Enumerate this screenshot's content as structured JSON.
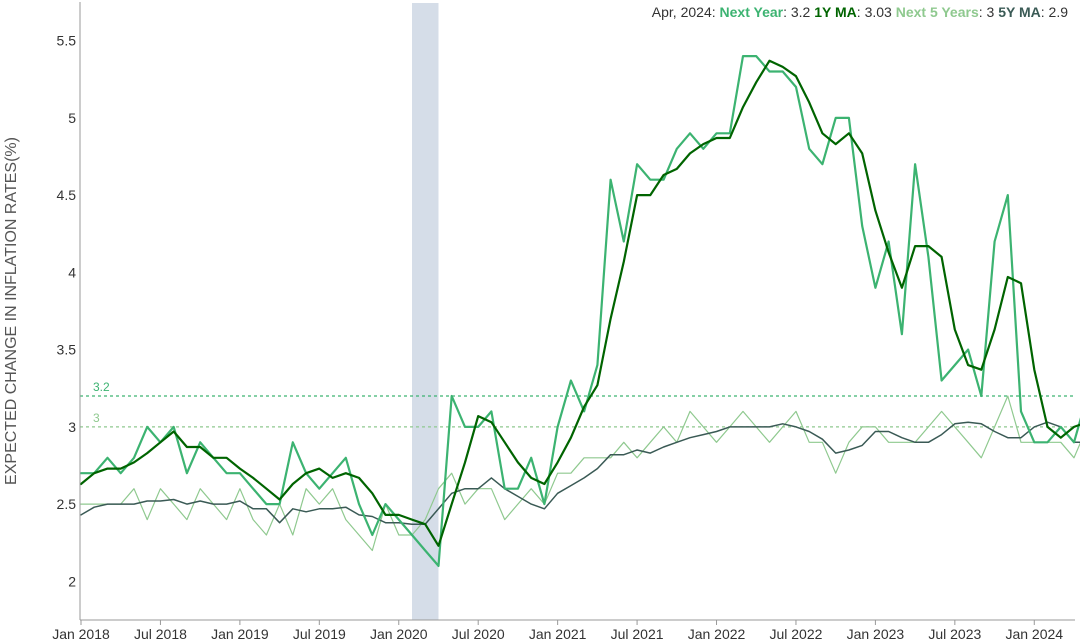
{
  "legend": {
    "date": "Apr, 2024:",
    "series": [
      {
        "label": "Next Year",
        "value": "3.2",
        "color": "#3cb371"
      },
      {
        "label": "1Y MA",
        "value": "3.03",
        "color": "#006400"
      },
      {
        "label": "Next 5 Years",
        "value": "3",
        "color": "#8fc98f"
      },
      {
        "label": "5Y MA",
        "value": "2.9",
        "color": "#3a5a55"
      }
    ]
  },
  "chart_data": {
    "type": "line",
    "title": "",
    "ylabel": "EXPECTED CHANGE IN INFLATION RATES(%)",
    "xlabel": "",
    "ylim": [
      1.75,
      5.75
    ],
    "yticks": [
      "2",
      "2.5",
      "3",
      "3.5",
      "4",
      "4.5",
      "5",
      "5.5"
    ],
    "x_start": "Jan 2018",
    "x_end": "Apr 2024",
    "xticks": [
      "Jan 2018",
      "Jul 2018",
      "Jan 2019",
      "Jul 2019",
      "Jan 2020",
      "Jul 2020",
      "Jan 2021",
      "Jul 2021",
      "Jan 2022",
      "Jul 2022",
      "Jan 2023",
      "Jul 2023",
      "Jan 2024"
    ],
    "grid": false,
    "recession": {
      "start": "Feb 2020",
      "end": "Apr 2020",
      "color": "#d5dde8"
    },
    "reference_lines": [
      {
        "label": "3.2",
        "value": 3.2,
        "color": "#3cb371"
      },
      {
        "label": "3",
        "value": 3.0,
        "color": "#8fc98f"
      }
    ],
    "series": [
      {
        "name": "Next 5 Years",
        "color": "#8fc98f",
        "width": 1.2,
        "values": [
          2.5,
          2.5,
          2.5,
          2.5,
          2.6,
          2.4,
          2.6,
          2.5,
          2.4,
          2.6,
          2.5,
          2.4,
          2.6,
          2.4,
          2.3,
          2.5,
          2.3,
          2.6,
          2.5,
          2.6,
          2.4,
          2.3,
          2.2,
          2.5,
          2.3,
          2.3,
          2.4,
          2.6,
          2.7,
          2.5,
          2.6,
          2.6,
          2.4,
          2.5,
          2.6,
          2.5,
          2.7,
          2.7,
          2.8,
          2.8,
          2.8,
          2.9,
          2.8,
          2.9,
          3.0,
          2.9,
          3.1,
          3.0,
          2.9,
          3.0,
          3.1,
          3.0,
          2.9,
          3.0,
          3.1,
          2.9,
          2.9,
          2.7,
          2.9,
          3.0,
          3.0,
          2.9,
          2.9,
          2.9,
          3.0,
          3.1,
          3.0,
          2.9,
          2.8,
          3.0,
          3.2,
          2.9,
          2.9,
          2.9,
          2.9,
          2.8,
          3.0
        ]
      },
      {
        "name": "5Y MA",
        "color": "#3a5a55",
        "width": 1.5,
        "values": [
          2.43,
          2.48,
          2.5,
          2.5,
          2.5,
          2.52,
          2.52,
          2.53,
          2.5,
          2.52,
          2.5,
          2.5,
          2.52,
          2.47,
          2.47,
          2.38,
          2.47,
          2.45,
          2.47,
          2.47,
          2.48,
          2.43,
          2.42,
          2.38,
          2.38,
          2.37,
          2.37,
          2.47,
          2.57,
          2.6,
          2.6,
          2.67,
          2.6,
          2.55,
          2.5,
          2.47,
          2.57,
          2.62,
          2.67,
          2.73,
          2.82,
          2.82,
          2.85,
          2.83,
          2.87,
          2.9,
          2.93,
          2.95,
          2.97,
          3.0,
          3.0,
          3.0,
          3.0,
          3.02,
          3.0,
          2.97,
          2.92,
          2.83,
          2.85,
          2.88,
          2.97,
          2.97,
          2.93,
          2.9,
          2.9,
          2.95,
          3.02,
          3.03,
          3.02,
          2.97,
          2.93,
          2.93,
          3.0,
          3.03,
          3.0,
          2.9,
          2.9
        ]
      },
      {
        "name": "Next Year",
        "color": "#3cb371",
        "width": 2.2,
        "values": [
          2.7,
          2.7,
          2.8,
          2.7,
          2.8,
          3.0,
          2.9,
          3.0,
          2.7,
          2.9,
          2.8,
          2.7,
          2.7,
          2.6,
          2.5,
          2.5,
          2.9,
          2.7,
          2.6,
          2.7,
          2.8,
          2.5,
          2.3,
          2.5,
          2.4,
          2.3,
          2.2,
          2.1,
          3.2,
          3.0,
          3.0,
          3.1,
          2.6,
          2.6,
          2.8,
          2.5,
          3.0,
          3.3,
          3.1,
          3.4,
          4.6,
          4.2,
          4.7,
          4.6,
          4.6,
          4.8,
          4.9,
          4.8,
          4.9,
          4.9,
          5.4,
          5.4,
          5.3,
          5.3,
          5.2,
          4.8,
          4.7,
          5.0,
          5.0,
          4.3,
          3.9,
          4.2,
          3.6,
          4.7,
          4.1,
          3.3,
          3.4,
          3.5,
          3.2,
          4.2,
          4.5,
          3.1,
          2.9,
          2.9,
          3.0,
          2.9,
          3.2
        ]
      },
      {
        "name": "1Y MA",
        "color": "#006400",
        "width": 2.2,
        "values": [
          2.63,
          2.7,
          2.73,
          2.73,
          2.77,
          2.83,
          2.9,
          2.97,
          2.87,
          2.87,
          2.8,
          2.8,
          2.73,
          2.67,
          2.6,
          2.53,
          2.63,
          2.7,
          2.73,
          2.67,
          2.7,
          2.67,
          2.57,
          2.43,
          2.43,
          2.4,
          2.37,
          2.23,
          2.5,
          2.77,
          3.07,
          3.03,
          2.9,
          2.77,
          2.67,
          2.63,
          2.77,
          2.93,
          3.13,
          3.27,
          3.7,
          4.07,
          4.5,
          4.5,
          4.63,
          4.67,
          4.77,
          4.83,
          4.87,
          4.87,
          5.07,
          5.23,
          5.37,
          5.33,
          5.27,
          5.1,
          4.9,
          4.83,
          4.9,
          4.77,
          4.4,
          4.13,
          3.9,
          4.17,
          4.17,
          4.1,
          3.63,
          3.4,
          3.37,
          3.63,
          3.97,
          3.93,
          3.37,
          3.0,
          2.93,
          3.0,
          3.03
        ]
      }
    ]
  }
}
